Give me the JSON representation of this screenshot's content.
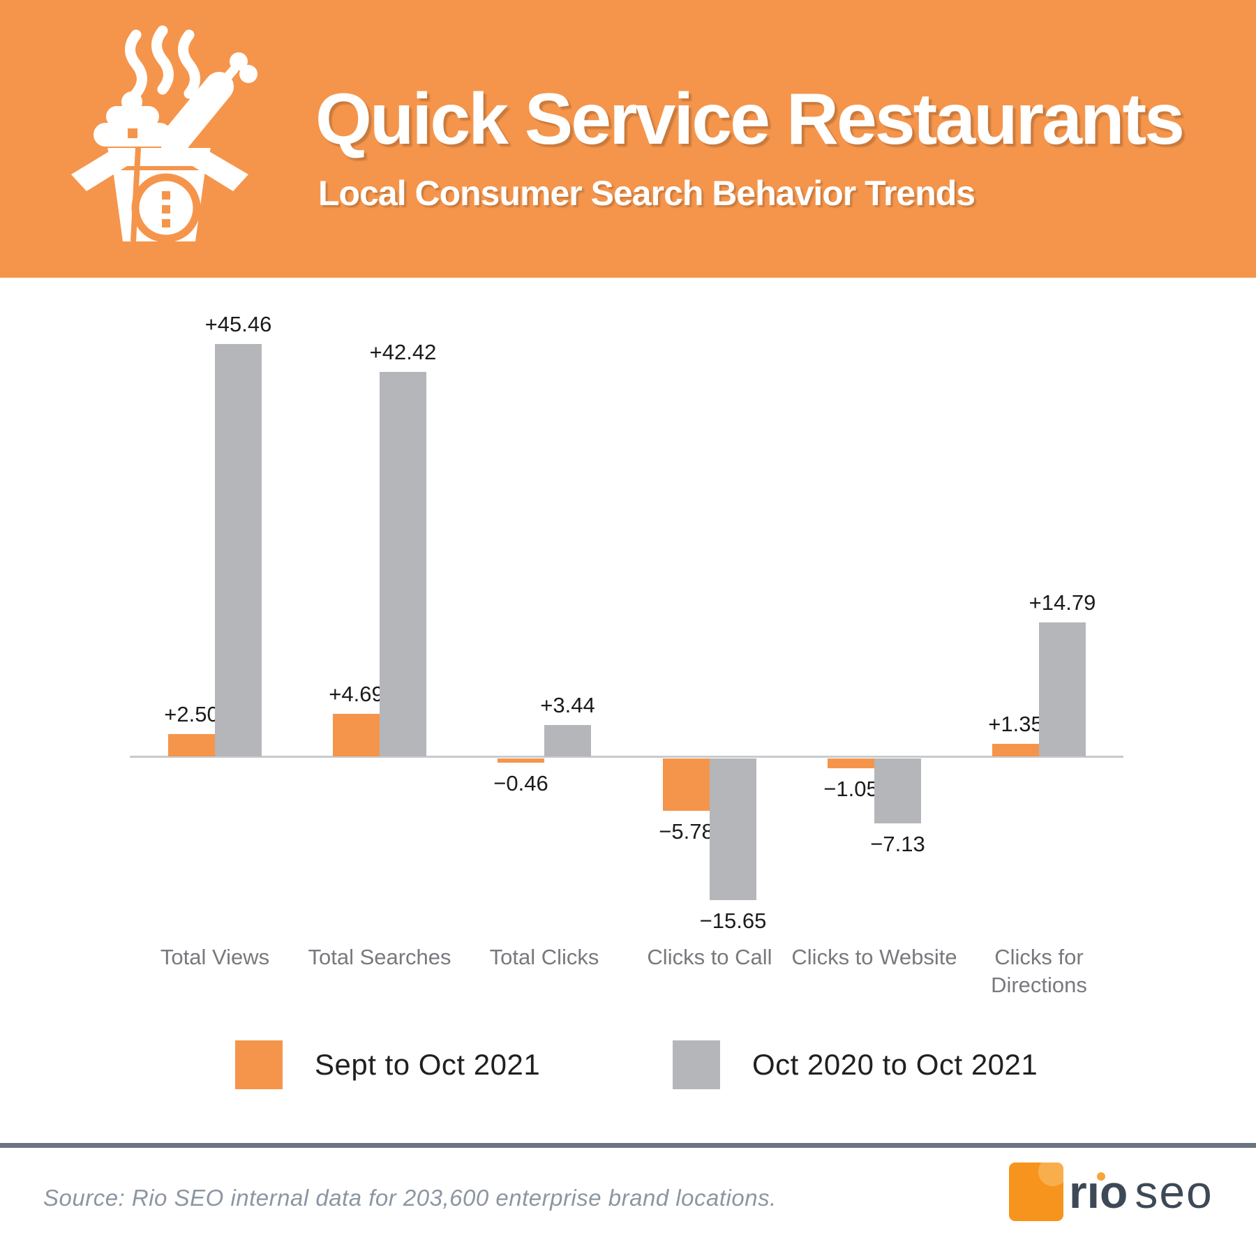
{
  "header": {
    "title": "Quick Service Restaurants",
    "subtitle": "Local Consumer Search Behavior Trends",
    "icon": "takeout-box-icon",
    "bg_color": "#F5954B"
  },
  "chart_data": {
    "type": "bar",
    "title": "",
    "xlabel": "",
    "ylabel": "",
    "categories": [
      "Total Views",
      "Total Searches",
      "Total Clicks",
      "Clicks to Call",
      "Clicks to Website",
      "Clicks for Directions"
    ],
    "series": [
      {
        "name": "Sept to Oct 2021",
        "color": "#F5954B",
        "values": [
          2.5,
          4.69,
          -0.46,
          -5.78,
          -1.05,
          1.35
        ],
        "labels": [
          "+2.50",
          "+4.69",
          "−0.46",
          "−5.78",
          "−1.05",
          "+1.35"
        ]
      },
      {
        "name": "Oct 2020 to Oct 2021",
        "color": "#B4B6BA",
        "values": [
          45.46,
          42.42,
          3.44,
          -15.65,
          -7.13,
          14.79
        ],
        "labels": [
          "+45.46",
          "+42.42",
          "+3.44",
          "−15.65",
          "−7.13",
          "+14.79"
        ]
      }
    ],
    "ylim": [
      -20,
      50
    ],
    "grid": false,
    "axis_labels_visible": false,
    "legend_position": "bottom"
  },
  "footer": {
    "source": "Source: Rio SEO internal data for 203,600 enterprise brand locations.",
    "logo": {
      "rio": "rıo",
      "seo": "seo"
    }
  },
  "colors": {
    "header_orange": "#F5954B",
    "bar_orange": "#F5954B",
    "bar_gray": "#B4B6BA",
    "axis_gray": "#C8CACD",
    "divider_slate": "#6B7480",
    "value_text": "#1B1B1B",
    "category_text": "#77797E",
    "source_text": "#8C96A1",
    "logo_orange": "#F7941E",
    "logo_slate": "#3D4956"
  }
}
